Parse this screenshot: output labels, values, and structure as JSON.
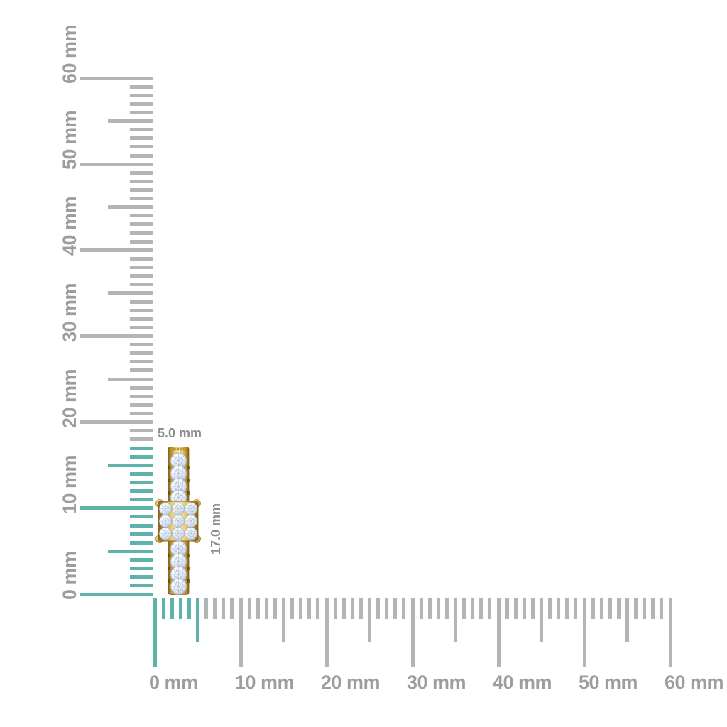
{
  "page": {
    "background": "#ffffff"
  },
  "colors": {
    "tick_gray": "#b4b4b4",
    "tick_highlight_teal": "#5fb2ac",
    "ruler_label_gray": "#9d9d9d",
    "dimension_label_gray": "#8c8c8c",
    "gold_dark": "#7c5a13",
    "gold_mid": "#d9ab45",
    "gold_light": "#fdf2b6",
    "diamond_light": "#ffffff",
    "diamond_shadow": "#a9bacf"
  },
  "rulers": {
    "unit": "mm",
    "vertical": {
      "min_mm": 0,
      "max_mm": 60,
      "minor_step_mm": 1,
      "half_step_mm": 5,
      "major_step_mm": 10,
      "labels": [
        "0 mm",
        "10 mm",
        "20 mm",
        "30 mm",
        "40 mm",
        "50 mm",
        "60 mm"
      ],
      "highlighted_extent_mm": 17
    },
    "horizontal": {
      "min_mm": 0,
      "max_mm": 60,
      "minor_step_mm": 1,
      "half_step_mm": 5,
      "major_step_mm": 10,
      "labels": [
        "0 mm",
        "10 mm",
        "20 mm",
        "30 mm",
        "40 mm",
        "50 mm",
        "60 mm"
      ],
      "highlighted_extent_mm": 5
    }
  },
  "dimensions": {
    "width_label": "5.0 mm",
    "height_label": "17.0 mm"
  },
  "item": {
    "name": "yellow gold diamond band",
    "width_mm": 5.0,
    "height_mm": 17.0
  }
}
